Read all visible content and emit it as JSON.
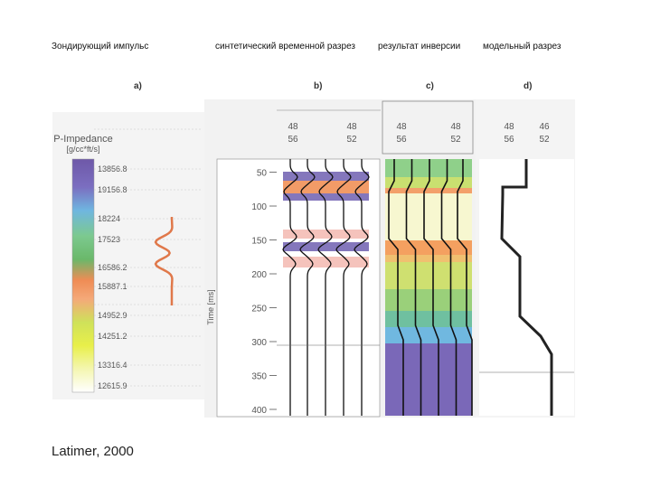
{
  "captions": {
    "impulse": "Зондирующий импульс",
    "synthetic": "синтетический временной разрез",
    "inversion": "результат инверсии",
    "model": "модельный разрез"
  },
  "credit": "Latimer, 2000",
  "panels": {
    "a": "a)",
    "b": "b)",
    "c": "c)",
    "d": "d)"
  },
  "impedance_scale": {
    "title": "P-Impedance",
    "unit": "[g/cc*ft/s]",
    "ticks": [
      "13856.8",
      "19156.8",
      "18224",
      "17523",
      "16586.2",
      "15887.1",
      "14952.9",
      "14251.2",
      "13316.4",
      "12615.9"
    ]
  },
  "trace_headers": {
    "b": [
      "48",
      "56",
      "48",
      "52"
    ],
    "c": [
      "48",
      "56",
      "48",
      "52"
    ],
    "d": [
      "48",
      "56",
      "46",
      "52"
    ]
  },
  "time_axis": {
    "label": "Time [ms]",
    "ticks": [
      "50",
      "100",
      "150",
      "200",
      "250",
      "300",
      "350",
      "400"
    ]
  },
  "colors": {
    "wavelet": "#e0784a",
    "purple": "#6f5fb0",
    "orange": "#f08a4c",
    "pink": "#f3b8b0"
  }
}
